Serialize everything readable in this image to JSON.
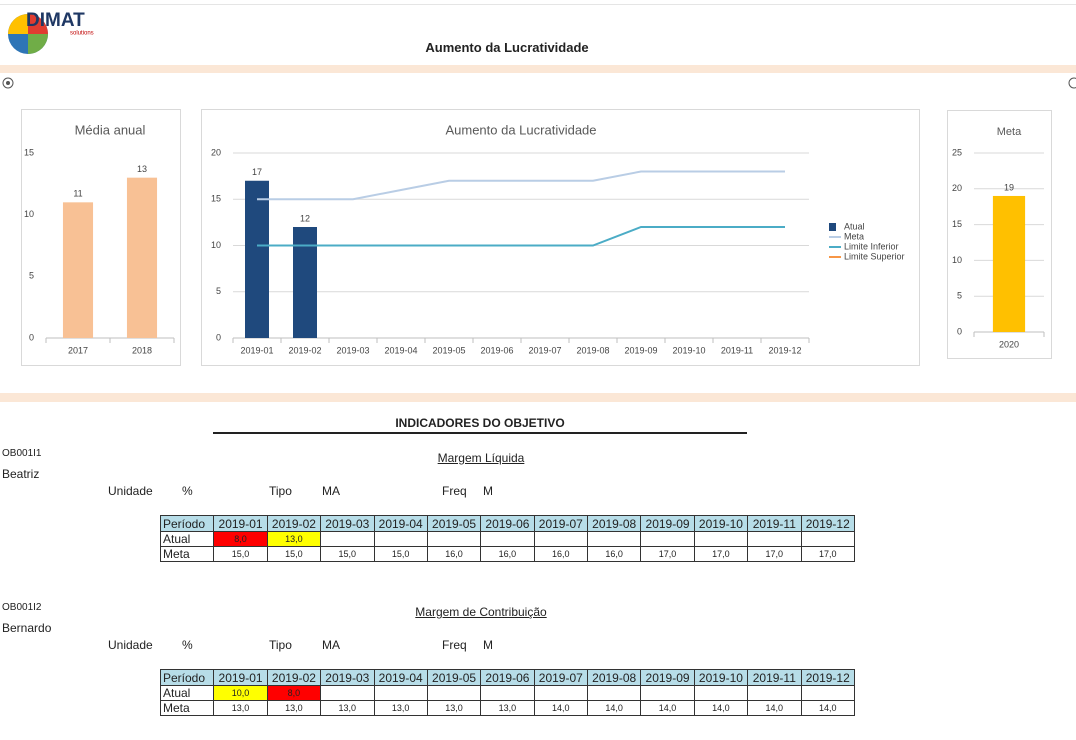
{
  "logo": {
    "name": "DIMAT",
    "tagline": "solutions"
  },
  "header": {
    "title": "Aumento da Lucratividade"
  },
  "chart_data": [
    {
      "type": "bar",
      "title": "Média anual",
      "categories": [
        "2017",
        "2018"
      ],
      "values": [
        11,
        13
      ],
      "color": "#f8c195",
      "ylim": [
        0,
        15
      ],
      "yticks": [
        0,
        5,
        10,
        15
      ],
      "grid": false
    },
    {
      "type": "combo",
      "title": "Aumento da Lucratividade",
      "categories": [
        "2019-01",
        "2019-02",
        "2019-03",
        "2019-04",
        "2019-05",
        "2019-06",
        "2019-07",
        "2019-08",
        "2019-09",
        "2019-10",
        "2019-11",
        "2019-12"
      ],
      "series": [
        {
          "name": "Atual",
          "type": "bar",
          "color": "#1f497d",
          "values": [
            17,
            12,
            null,
            null,
            null,
            null,
            null,
            null,
            null,
            null,
            null,
            null
          ]
        },
        {
          "name": "Meta",
          "type": "line",
          "color": "#b9cde5",
          "values": [
            15,
            15,
            15,
            16,
            17,
            17,
            17,
            17,
            18,
            18,
            18,
            18
          ]
        },
        {
          "name": "Limite Inferior",
          "type": "line",
          "color": "#4bacc6",
          "values": [
            10,
            10,
            10,
            10,
            10,
            10,
            10,
            10,
            12,
            12,
            12,
            12
          ]
        },
        {
          "name": "Limite Superior",
          "type": "line",
          "color": "#f79646",
          "values": [
            null,
            null,
            null,
            null,
            null,
            null,
            null,
            null,
            null,
            null,
            null,
            null
          ]
        }
      ],
      "ylim": [
        0,
        20
      ],
      "yticks": [
        0,
        5,
        10,
        15,
        20
      ],
      "grid": true,
      "legend": "right"
    },
    {
      "type": "bar",
      "title": "Meta",
      "categories": [
        "2020"
      ],
      "values": [
        19
      ],
      "color": "#ffc000",
      "ylim": [
        0,
        25
      ],
      "yticks": [
        0,
        5,
        10,
        15,
        20,
        25
      ],
      "grid": true
    }
  ],
  "indicators": {
    "title": "INDICADORES DO OBJETIVO",
    "items": [
      {
        "code": "OB001I1",
        "owner": "Beatriz",
        "name": "Margem Líquida",
        "fields": [
          {
            "label": "Unidade",
            "value": "%"
          },
          {
            "label": "Tipo",
            "value": "MA"
          },
          {
            "label": "Freq",
            "value": "M"
          }
        ],
        "table": {
          "header_label": "Período",
          "periods": [
            "2019-01",
            "2019-02",
            "2019-03",
            "2019-04",
            "2019-05",
            "2019-06",
            "2019-07",
            "2019-08",
            "2019-09",
            "2019-10",
            "2019-11",
            "2019-12"
          ],
          "rows": [
            {
              "label": "Atual",
              "cells": [
                "8,0",
                "13,0"
              ],
              "colors": [
                "#ff0000",
                "#ffff00"
              ]
            },
            {
              "label": "Meta",
              "cells": [
                "15,0",
                "15,0",
                "15,0",
                "15,0",
                "16,0",
                "16,0",
                "16,0",
                "16,0",
                "17,0",
                "17,0",
                "17,0",
                "17,0"
              ]
            }
          ]
        }
      },
      {
        "code": "OB001I2",
        "owner": "Bernardo",
        "name": "Margem de Contribuição",
        "fields": [
          {
            "label": "Unidade",
            "value": "%"
          },
          {
            "label": "Tipo",
            "value": "MA"
          },
          {
            "label": "Freq",
            "value": "M"
          }
        ],
        "table": {
          "header_label": "Período",
          "periods": [
            "2019-01",
            "2019-02",
            "2019-03",
            "2019-04",
            "2019-05",
            "2019-06",
            "2019-07",
            "2019-08",
            "2019-09",
            "2019-10",
            "2019-11",
            "2019-12"
          ],
          "rows": [
            {
              "label": "Atual",
              "cells": [
                "10,0",
                "8,0"
              ],
              "colors": [
                "#ffff00",
                "#ff0000"
              ]
            },
            {
              "label": "Meta",
              "cells": [
                "13,0",
                "13,0",
                "13,0",
                "13,0",
                "13,0",
                "13,0",
                "14,0",
                "14,0",
                "14,0",
                "14,0",
                "14,0",
                "14,0"
              ]
            }
          ]
        }
      }
    ]
  }
}
